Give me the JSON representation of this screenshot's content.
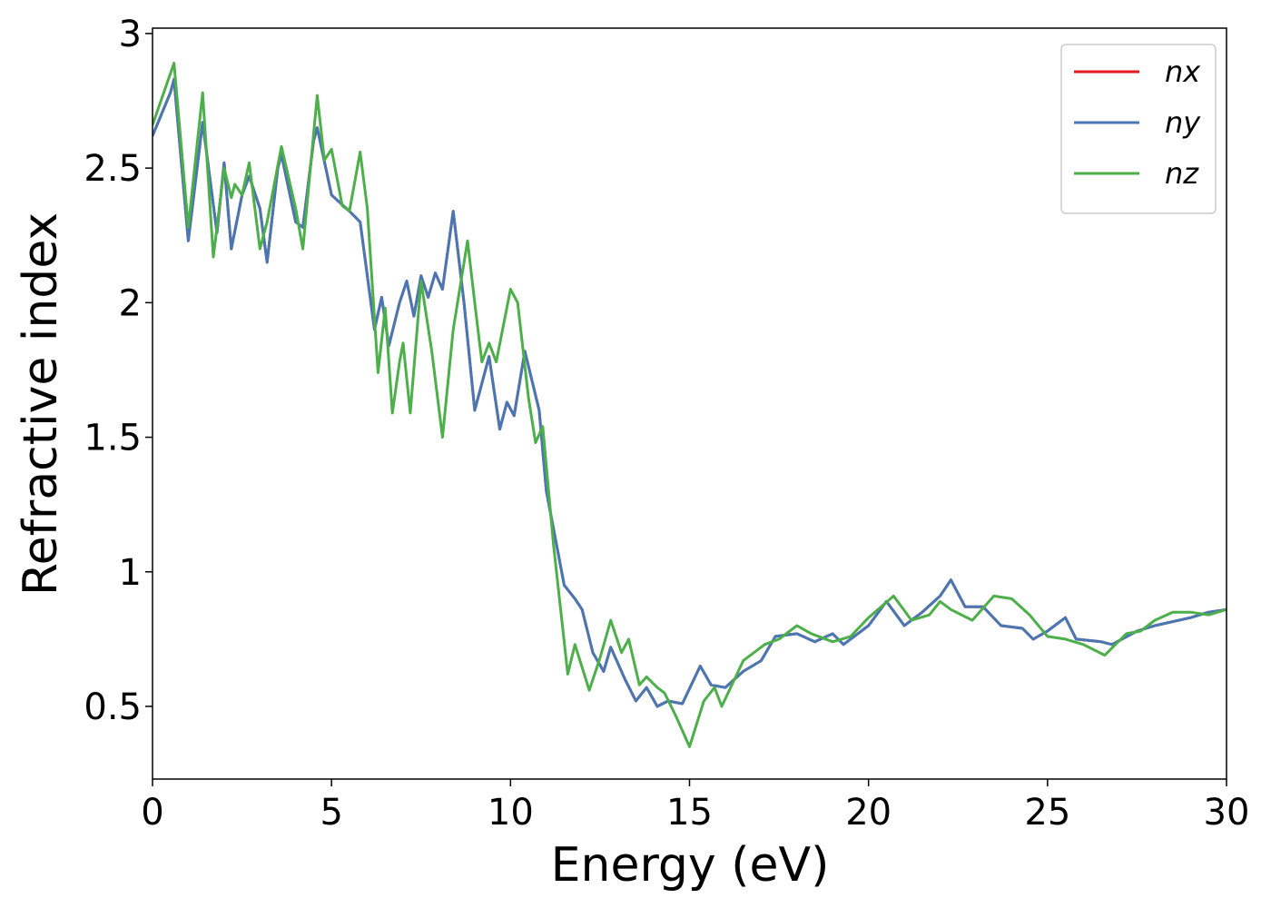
{
  "chart_data": {
    "type": "line",
    "x_label": "Energy (eV)",
    "y_label": "Refractive index",
    "xlim": [
      0,
      30
    ],
    "ylim": [
      0.23,
      3.02
    ],
    "xticks": [
      0,
      5,
      10,
      15,
      20,
      25,
      30
    ],
    "yticks": [
      0.5,
      1.0,
      1.5,
      2.0,
      2.5,
      3.0
    ],
    "legend": "upper right",
    "series": [
      {
        "name": "nx",
        "color": "#e41a1c",
        "x": [
          0,
          0.5,
          0.6,
          1.0,
          1.4,
          1.8,
          2.0,
          2.2,
          2.5,
          2.7,
          3.0,
          3.2,
          3.5,
          3.6,
          4.0,
          4.2,
          4.5,
          4.6,
          5.0,
          5.5,
          5.8,
          6.2,
          6.4,
          6.6,
          6.9,
          7.1,
          7.3,
          7.5,
          7.7,
          7.9,
          8.1,
          8.4,
          8.7,
          9.0,
          9.4,
          9.7,
          9.9,
          10.1,
          10.4,
          10.8,
          11.0,
          11.5,
          11.8,
          12.0,
          12.3,
          12.6,
          12.8,
          13.2,
          13.5,
          13.8,
          14.1,
          14.4,
          14.8,
          15.3,
          15.6,
          16.0,
          16.5,
          17.0,
          17.4,
          18.0,
          18.5,
          19.0,
          19.3,
          20.0,
          20.5,
          21.0,
          21.5,
          22.0,
          22.3,
          22.7,
          23.2,
          23.7,
          24.3,
          24.6,
          25.0,
          25.5,
          25.8,
          26.5,
          26.8,
          27.5,
          28.0,
          29.0,
          29.5,
          30.0
        ],
        "values": [
          2.62,
          2.78,
          2.83,
          2.23,
          2.67,
          2.26,
          2.52,
          2.2,
          2.4,
          2.47,
          2.35,
          2.15,
          2.5,
          2.55,
          2.3,
          2.28,
          2.6,
          2.65,
          2.4,
          2.34,
          2.3,
          1.9,
          2.02,
          1.84,
          2.0,
          2.08,
          1.95,
          2.1,
          2.02,
          2.11,
          2.05,
          2.34,
          2.0,
          1.6,
          1.8,
          1.53,
          1.63,
          1.58,
          1.82,
          1.6,
          1.3,
          0.95,
          0.9,
          0.86,
          0.7,
          0.63,
          0.72,
          0.6,
          0.52,
          0.57,
          0.5,
          0.52,
          0.51,
          0.65,
          0.58,
          0.57,
          0.63,
          0.67,
          0.76,
          0.77,
          0.74,
          0.77,
          0.73,
          0.8,
          0.89,
          0.8,
          0.85,
          0.91,
          0.97,
          0.87,
          0.87,
          0.8,
          0.79,
          0.75,
          0.78,
          0.83,
          0.75,
          0.74,
          0.73,
          0.78,
          0.8,
          0.83,
          0.85,
          0.86
        ]
      },
      {
        "name": "ny",
        "color": "#4878b4",
        "x": [
          0,
          0.5,
          0.6,
          1.0,
          1.4,
          1.8,
          2.0,
          2.2,
          2.5,
          2.7,
          3.0,
          3.2,
          3.5,
          3.6,
          4.0,
          4.2,
          4.5,
          4.6,
          5.0,
          5.5,
          5.8,
          6.2,
          6.4,
          6.6,
          6.9,
          7.1,
          7.3,
          7.5,
          7.7,
          7.9,
          8.1,
          8.4,
          8.7,
          9.0,
          9.4,
          9.7,
          9.9,
          10.1,
          10.4,
          10.8,
          11.0,
          11.5,
          11.8,
          12.0,
          12.3,
          12.6,
          12.8,
          13.2,
          13.5,
          13.8,
          14.1,
          14.4,
          14.8,
          15.3,
          15.6,
          16.0,
          16.5,
          17.0,
          17.4,
          18.0,
          18.5,
          19.0,
          19.3,
          20.0,
          20.5,
          21.0,
          21.5,
          22.0,
          22.3,
          22.7,
          23.2,
          23.7,
          24.3,
          24.6,
          25.0,
          25.5,
          25.8,
          26.5,
          26.8,
          27.5,
          28.0,
          29.0,
          29.5,
          30.0
        ],
        "values": [
          2.62,
          2.78,
          2.83,
          2.23,
          2.67,
          2.26,
          2.52,
          2.2,
          2.4,
          2.47,
          2.35,
          2.15,
          2.5,
          2.55,
          2.3,
          2.28,
          2.6,
          2.65,
          2.4,
          2.34,
          2.3,
          1.9,
          2.02,
          1.84,
          2.0,
          2.08,
          1.95,
          2.1,
          2.02,
          2.11,
          2.05,
          2.34,
          2.0,
          1.6,
          1.8,
          1.53,
          1.63,
          1.58,
          1.82,
          1.6,
          1.3,
          0.95,
          0.9,
          0.86,
          0.7,
          0.63,
          0.72,
          0.6,
          0.52,
          0.57,
          0.5,
          0.52,
          0.51,
          0.65,
          0.58,
          0.57,
          0.63,
          0.67,
          0.76,
          0.77,
          0.74,
          0.77,
          0.73,
          0.8,
          0.89,
          0.8,
          0.85,
          0.91,
          0.97,
          0.87,
          0.87,
          0.8,
          0.79,
          0.75,
          0.78,
          0.83,
          0.75,
          0.74,
          0.73,
          0.78,
          0.8,
          0.83,
          0.85,
          0.86
        ]
      },
      {
        "name": "nz",
        "color": "#4daf4a",
        "x": [
          0,
          0.6,
          1.0,
          1.4,
          1.7,
          2.0,
          2.2,
          2.3,
          2.5,
          2.7,
          3.0,
          3.2,
          3.6,
          4.0,
          4.2,
          4.6,
          4.8,
          5.0,
          5.3,
          5.5,
          5.8,
          6.0,
          6.3,
          6.5,
          6.7,
          6.9,
          7.0,
          7.2,
          7.5,
          7.8,
          8.1,
          8.4,
          8.8,
          9.0,
          9.2,
          9.4,
          9.6,
          10.0,
          10.2,
          10.5,
          10.7,
          10.9,
          11.2,
          11.6,
          11.8,
          12.2,
          12.5,
          12.8,
          13.1,
          13.3,
          13.6,
          13.8,
          14.1,
          14.3,
          14.6,
          15.0,
          15.4,
          15.7,
          15.9,
          16.5,
          16.8,
          17.1,
          17.5,
          18.0,
          18.4,
          19.0,
          19.5,
          20.0,
          20.7,
          21.2,
          21.7,
          22.0,
          22.3,
          22.9,
          23.5,
          24.0,
          24.5,
          25.0,
          25.5,
          26.0,
          26.6,
          27.2,
          27.6,
          28.0,
          28.5,
          29.0,
          29.5,
          30.0
        ],
        "values": [
          2.66,
          2.89,
          2.28,
          2.78,
          2.17,
          2.5,
          2.39,
          2.44,
          2.4,
          2.52,
          2.2,
          2.3,
          2.58,
          2.35,
          2.2,
          2.77,
          2.53,
          2.57,
          2.36,
          2.34,
          2.56,
          2.35,
          1.74,
          1.98,
          1.59,
          1.78,
          1.85,
          1.59,
          2.08,
          1.82,
          1.5,
          1.9,
          2.23,
          2.0,
          1.78,
          1.85,
          1.78,
          2.05,
          2.0,
          1.65,
          1.48,
          1.54,
          1.1,
          0.62,
          0.73,
          0.56,
          0.68,
          0.82,
          0.7,
          0.75,
          0.58,
          0.61,
          0.57,
          0.55,
          0.47,
          0.35,
          0.52,
          0.57,
          0.5,
          0.67,
          0.7,
          0.73,
          0.75,
          0.8,
          0.77,
          0.74,
          0.76,
          0.83,
          0.91,
          0.82,
          0.84,
          0.89,
          0.86,
          0.82,
          0.91,
          0.9,
          0.84,
          0.76,
          0.75,
          0.73,
          0.69,
          0.77,
          0.78,
          0.82,
          0.85,
          0.85,
          0.84,
          0.86
        ]
      }
    ]
  }
}
